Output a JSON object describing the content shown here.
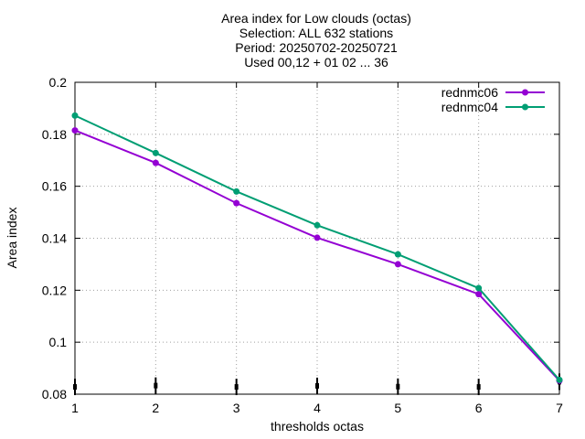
{
  "chart_data": {
    "type": "line",
    "title_lines": [
      "Area index  for Low clouds (octas)",
      "Selection: ALL    632 stations",
      "Period: 20250702-20250721",
      "Used 00,12 + 01 02 ... 36"
    ],
    "xlabel": "thresholds octas",
    "ylabel": "Area index",
    "x": [
      1,
      2,
      3,
      4,
      5,
      6,
      7
    ],
    "xlim": [
      1,
      7
    ],
    "ylim": [
      0.08,
      0.2
    ],
    "x_ticks": [
      "1",
      "2",
      "3",
      "4",
      "5",
      "6",
      "7"
    ],
    "y_ticks": [
      {
        "value": 0.08,
        "label": "0.08"
      },
      {
        "value": 0.1,
        "label": "0.1"
      },
      {
        "value": 0.12,
        "label": "0.12"
      },
      {
        "value": 0.14,
        "label": "0.14"
      },
      {
        "value": 0.16,
        "label": "0.16"
      },
      {
        "value": 0.18,
        "label": "0.18"
      },
      {
        "value": 0.2,
        "label": "0.2"
      }
    ],
    "grid": true,
    "legend_position": "top-right",
    "series": [
      {
        "name": "rednmc06",
        "color": "#9400d3",
        "values": [
          0.1815,
          0.169,
          0.1535,
          0.1402,
          0.13,
          0.1185,
          0.0852
        ]
      },
      {
        "name": "rednmc04",
        "color": "#009e73",
        "values": [
          0.1872,
          0.1728,
          0.158,
          0.145,
          0.1338,
          0.1208,
          0.0855
        ]
      }
    ],
    "error_bars": {
      "color": "#000000",
      "values": [
        0.0828,
        0.0833,
        0.0828,
        0.0832,
        0.0829,
        0.0828,
        0.0848
      ]
    }
  }
}
